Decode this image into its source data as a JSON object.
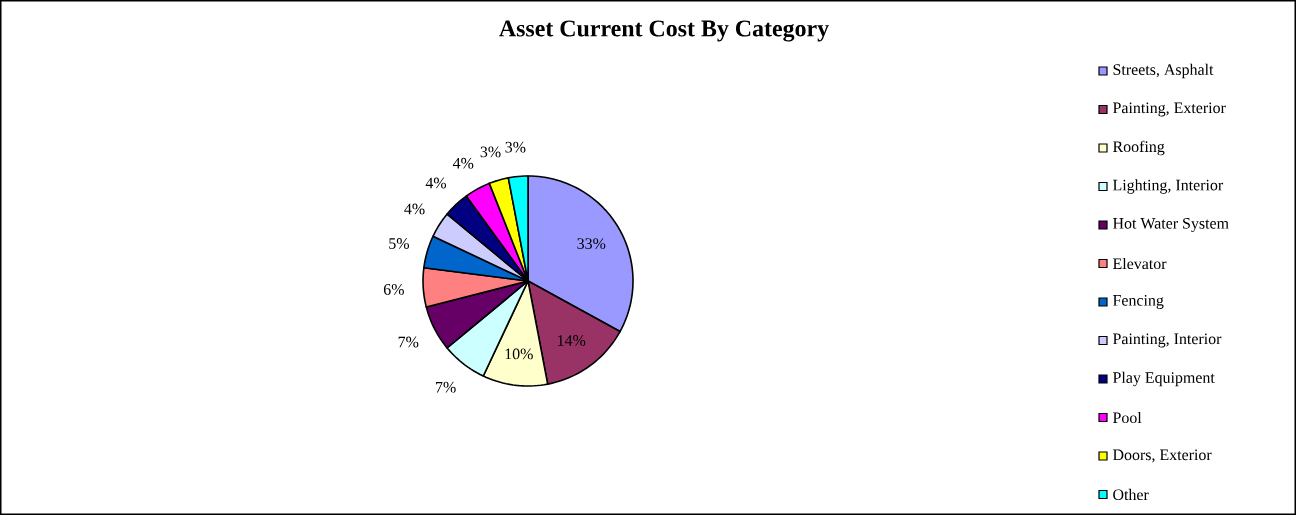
{
  "chart_data": {
    "type": "pie",
    "title": "Asset Current Cost By Category",
    "categories": [
      "Streets, Asphalt",
      "Painting, Exterior",
      "Roofing",
      "Lighting, Interior",
      "Hot Water System",
      "Elevator",
      "Fencing",
      "Painting, Interior",
      "Play Equipment",
      "Pool",
      "Doors, Exterior",
      "Other"
    ],
    "values": [
      33,
      14,
      10,
      7,
      7,
      6,
      5,
      4,
      4,
      4,
      3,
      3
    ],
    "value_labels": [
      "33%",
      "14%",
      "10%",
      "7%",
      "7%",
      "6%",
      "5%",
      "4%",
      "4%",
      "4%",
      "3%",
      "3%"
    ],
    "colors": [
      "#9999ff",
      "#993366",
      "#ffffcc",
      "#ccffff",
      "#660066",
      "#ff8080",
      "#0066cc",
      "#ccccff",
      "#000080",
      "#ff00ff",
      "#ffff00",
      "#00ffff"
    ],
    "legend": "right"
  }
}
